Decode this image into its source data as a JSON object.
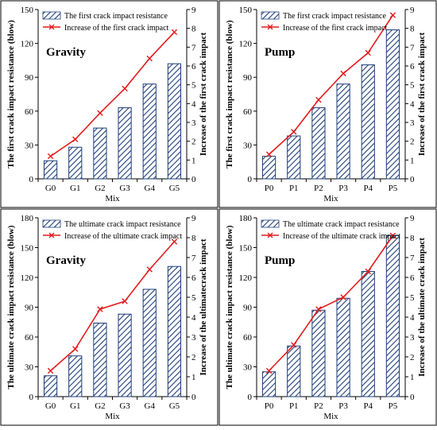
{
  "colors": {
    "bar_stroke": "#1f3f7a",
    "bar_hatch": "#1f3f7a",
    "line": "#e41a1c",
    "frame": "#000000"
  },
  "chart_data": [
    {
      "type": "bar",
      "panel_label": "Gravity",
      "categories": [
        "G0",
        "G1",
        "G2",
        "G3",
        "G4",
        "G5"
      ],
      "xlabel": "Mix",
      "ylabel": "The first crack impact resistance (blow)",
      "y2label": "Increase of the first crack impact",
      "ylim": [
        0,
        150
      ],
      "yticks": [
        0,
        30,
        60,
        90,
        120,
        150
      ],
      "y2lim": [
        0,
        9
      ],
      "y2ticks": [
        0,
        1,
        2,
        3,
        4,
        5,
        6,
        7,
        8,
        9
      ],
      "legend_position": "top-left",
      "series": [
        {
          "name": "The first crack impact resistance",
          "kind": "bar",
          "axis": "left",
          "values": [
            16,
            28,
            45,
            63,
            84,
            102
          ]
        },
        {
          "name": "Increase of the first crack impact",
          "kind": "line",
          "axis": "right",
          "values": [
            1.2,
            2.1,
            3.5,
            4.8,
            6.4,
            7.8
          ]
        }
      ]
    },
    {
      "type": "bar",
      "panel_label": "Pump",
      "categories": [
        "P0",
        "P1",
        "P2",
        "P3",
        "P4",
        "P5"
      ],
      "xlabel": "Mix",
      "ylabel": "The first crack impact resistance (blow)",
      "y2label": "Increase of the first crack impact",
      "ylim": [
        0,
        150
      ],
      "yticks": [
        0,
        30,
        60,
        90,
        120,
        150
      ],
      "y2lim": [
        0,
        9
      ],
      "y2ticks": [
        0,
        1,
        2,
        3,
        4,
        5,
        6,
        7,
        8,
        9
      ],
      "legend_position": "top-left",
      "series": [
        {
          "name": "The first crack impact resistance",
          "kind": "bar",
          "axis": "left",
          "values": [
            20,
            38,
            63,
            84,
            101,
            132
          ]
        },
        {
          "name": "Increase of the first crack impact",
          "kind": "line",
          "axis": "right",
          "values": [
            1.3,
            2.5,
            4.2,
            5.6,
            6.7,
            8.7
          ]
        }
      ]
    },
    {
      "type": "bar",
      "panel_label": "Gravity",
      "categories": [
        "G0",
        "G1",
        "G2",
        "G3",
        "G4",
        "G5"
      ],
      "xlabel": "Mix",
      "ylabel": "The ultimate crack impact resistance (blow)",
      "y2label": "Increase of the ultimatecrack impact",
      "ylim": [
        0,
        180
      ],
      "yticks": [
        0,
        30,
        60,
        90,
        120,
        150,
        180
      ],
      "y2lim": [
        0,
        9
      ],
      "y2ticks": [
        0,
        1,
        2,
        3,
        4,
        5,
        6,
        7,
        8,
        9
      ],
      "legend_position": "top-left",
      "series": [
        {
          "name": "The ultimate crack impact resistance",
          "kind": "bar",
          "axis": "left",
          "values": [
            21,
            41,
            74,
            83,
            108,
            131
          ]
        },
        {
          "name": "Increase of the ultimate crack impact",
          "kind": "line",
          "axis": "right",
          "values": [
            1.3,
            2.4,
            4.4,
            4.8,
            6.4,
            7.8
          ]
        }
      ]
    },
    {
      "type": "bar",
      "panel_label": "Pump",
      "categories": [
        "P0",
        "P1",
        "P2",
        "P3",
        "P4",
        "P5"
      ],
      "xlabel": "Mix",
      "ylabel": "The ultimate crack impact resistance (blow)",
      "y2label": "Increase of the ultimate crack impact",
      "ylim": [
        0,
        180
      ],
      "yticks": [
        0,
        30,
        60,
        90,
        120,
        150,
        180
      ],
      "y2lim": [
        0,
        9
      ],
      "y2ticks": [
        0,
        1,
        2,
        3,
        4,
        5,
        6,
        7,
        8,
        9
      ],
      "legend_position": "top-left",
      "series": [
        {
          "name": "The ultimate crack impact resistance",
          "kind": "bar",
          "axis": "left",
          "values": [
            25,
            51,
            87,
            99,
            126,
            162
          ]
        },
        {
          "name": "Increase of the ultimate crack impact",
          "kind": "line",
          "axis": "right",
          "values": [
            1.3,
            2.6,
            4.4,
            5.0,
            6.3,
            8.1
          ]
        }
      ]
    }
  ]
}
